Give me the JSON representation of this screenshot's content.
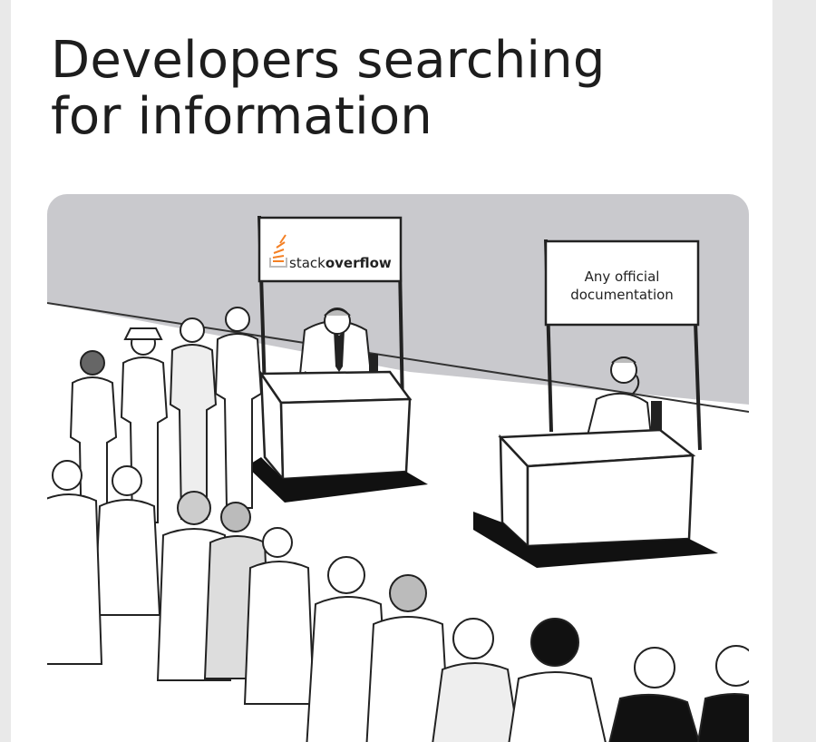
{
  "meme": {
    "title_line1": "Developers searching",
    "title_line2": "for information"
  },
  "booths": {
    "left_sign": {
      "brand_prefix": "stack",
      "brand_bold": "overflow",
      "logo_icon": "stackoverflow-logo-icon"
    },
    "right_sign": {
      "line1": "Any official",
      "line2": "documentation"
    }
  },
  "colors": {
    "background_wall": "#c8c8cc",
    "floor": "#ffffff",
    "ink": "#111111",
    "logo_orange": "#f48024",
    "logo_gray": "#bcbbbb"
  }
}
